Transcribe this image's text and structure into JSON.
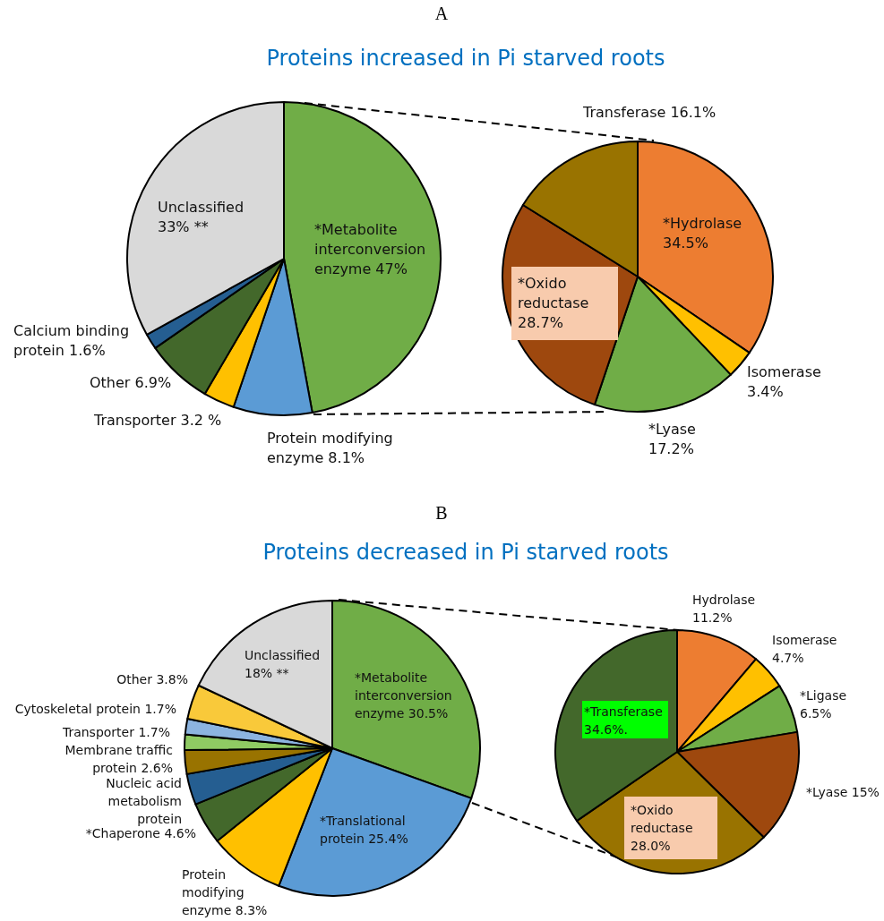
{
  "chart_data": [
    {
      "type": "pie",
      "title": "Proteins increased in Pi starved roots",
      "annotations": [
        "A"
      ],
      "categories": [
        "*Metabolite interconversion enzyme",
        "Protein modifying enzyme",
        "Transporter",
        "Other",
        "Calcium binding protein",
        "Unclassified"
      ],
      "values": [
        47,
        8.1,
        3.2,
        6.9,
        1.6,
        33
      ],
      "value_labels": [
        "47%",
        "8.1%",
        "3.2 %",
        "6.9%",
        "1.6%",
        "33% **"
      ],
      "colors": [
        "#70ad47",
        "#5b9bd5",
        "#ffc000",
        "#43682b",
        "#255e91",
        "#d9d9d9"
      ]
    },
    {
      "type": "pie",
      "categories": [
        "*Hydrolase",
        "Isomerase",
        "*Lyase",
        "*Oxido reductase",
        "Transferase"
      ],
      "values": [
        34.5,
        3.4,
        17.2,
        28.7,
        16.1
      ],
      "value_labels": [
        "34.5%",
        "3.4%",
        "17.2%",
        "28.7%",
        "16.1%"
      ],
      "colors": [
        "#ed7d31",
        "#ffc000",
        "#70ad47",
        "#9e480e",
        "#997300"
      ]
    },
    {
      "type": "pie",
      "title": "Proteins decreased in Pi starved roots",
      "annotations": [
        "B"
      ],
      "categories": [
        "*Metabolite interconversion enzyme",
        "*Translational protein",
        "Protein modifying enzyme",
        "*Chaperone",
        "Nucleic acid metabolism protein",
        "Membrane traffic protein",
        "Transporter",
        "Cytoskeletal protein",
        "Other",
        "Unclassified"
      ],
      "values": [
        30.5,
        25.4,
        8.3,
        4.6,
        3.4,
        2.6,
        1.7,
        1.7,
        3.8,
        18
      ],
      "value_labels": [
        "30.5%",
        "25.4%",
        "8.3%",
        "4.6%",
        null,
        "2.6%",
        "1.7%",
        "1.7%",
        "3.8%",
        "18% **"
      ],
      "colors": [
        "#70ad47",
        "#5b9bd5",
        "#ffc000",
        "#43682b",
        "#255e91",
        "#997300",
        "#8fca63",
        "#8cb4e0",
        "#f9c93a",
        "#d9d9d9"
      ]
    },
    {
      "type": "pie",
      "categories": [
        "Hydrolase",
        "Isomerase",
        "*Ligase",
        "*Lyase",
        "*Oxido reductase",
        "*Transferase"
      ],
      "values": [
        11.2,
        4.7,
        6.5,
        15,
        28.0,
        34.6
      ],
      "value_labels": [
        "11.2%",
        "4.7%",
        "6.5%",
        "15%",
        "28.0%",
        "34.6%."
      ],
      "colors": [
        "#ed7d31",
        "#ffc000",
        "#70ad47",
        "#9e480e",
        "#997300",
        "#43682b"
      ]
    }
  ]
}
